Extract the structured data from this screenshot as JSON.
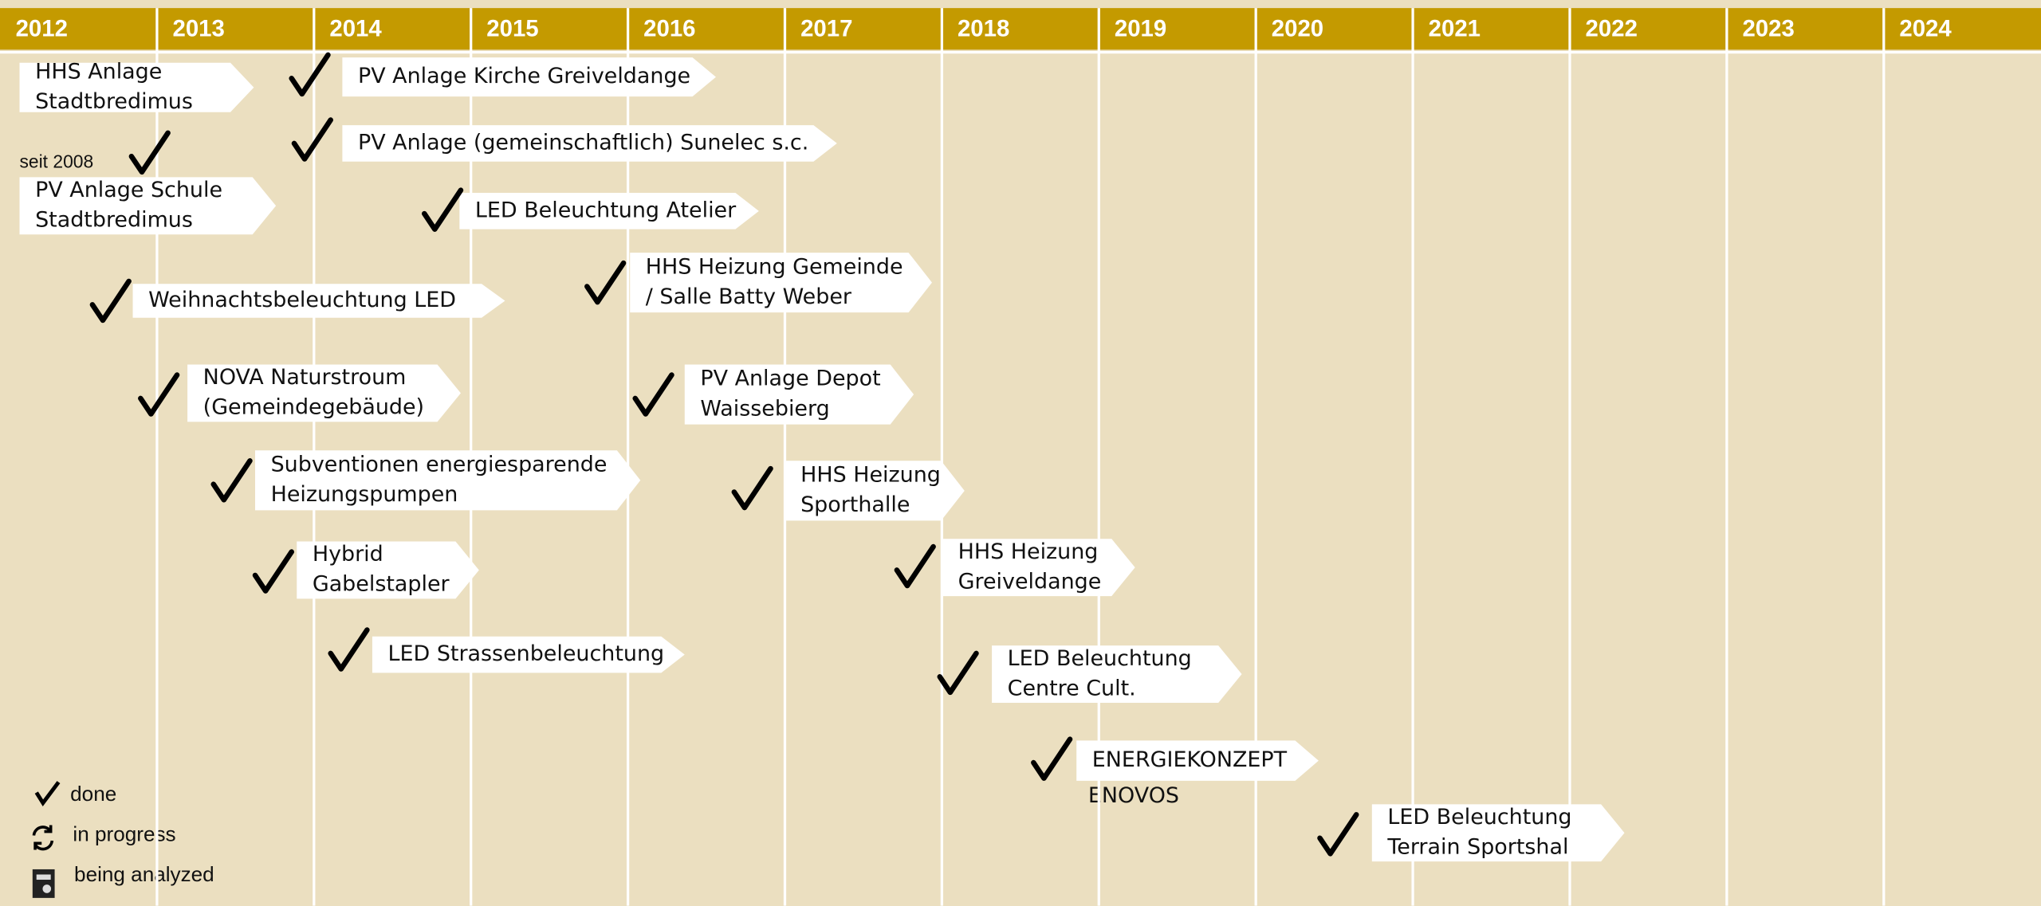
{
  "years": [
    "2012",
    "2013",
    "2014",
    "2015",
    "2016",
    "2017",
    "2018",
    "2019",
    "2020",
    "2021",
    "2022",
    "2023",
    "2024"
  ],
  "items": [
    {
      "lines": [
        "HHS Anlage",
        "Stadtbredimus"
      ]
    },
    {
      "lines": [
        "PV Anlage Kirche Greiveldange"
      ]
    },
    {
      "lines": [
        "PV  Anlage (gemeinschaftlich) Sunelec s.c."
      ]
    },
    {
      "lines": [
        "PV Anlage Schule",
        "Stadtbredimus"
      ]
    },
    {
      "lines": [
        "LED Beleuchtung Atelier"
      ]
    },
    {
      "lines": [
        "HHS Heizung Gemeinde",
        "/ Salle Batty Weber"
      ]
    },
    {
      "lines": [
        "Weihnachtsbeleuchtung LED"
      ]
    },
    {
      "lines": [
        "NOVA Naturstroum",
        "(Gemeindegebäude)"
      ]
    },
    {
      "lines": [
        "PV Anlage Depot",
        "Waissebierg"
      ]
    },
    {
      "lines": [
        "Subventionen energiesparende",
        "Heizungspumpen"
      ]
    },
    {
      "lines": [
        "HHS Heizung",
        "Sporthalle"
      ]
    },
    {
      "lines": [
        "Hybrid",
        "Gabelstapler"
      ]
    },
    {
      "lines": [
        "HHS Heizung",
        "Greiveldange"
      ]
    },
    {
      "lines": [
        "LED Strassenbeleuchtung"
      ]
    },
    {
      "lines": [
        "LED Beleuchtung",
        "Centre Cult."
      ]
    },
    {
      "lines": [
        "ENERGIEKONZEPT"
      ]
    },
    {
      "lines": [
        "LED Beleuchtung",
        "Terrain Sportshal"
      ]
    }
  ],
  "note": "seit 2008",
  "sub_note": "ENOVOS",
  "legend": [
    "done",
    "in progress",
    "being analyzed"
  ]
}
